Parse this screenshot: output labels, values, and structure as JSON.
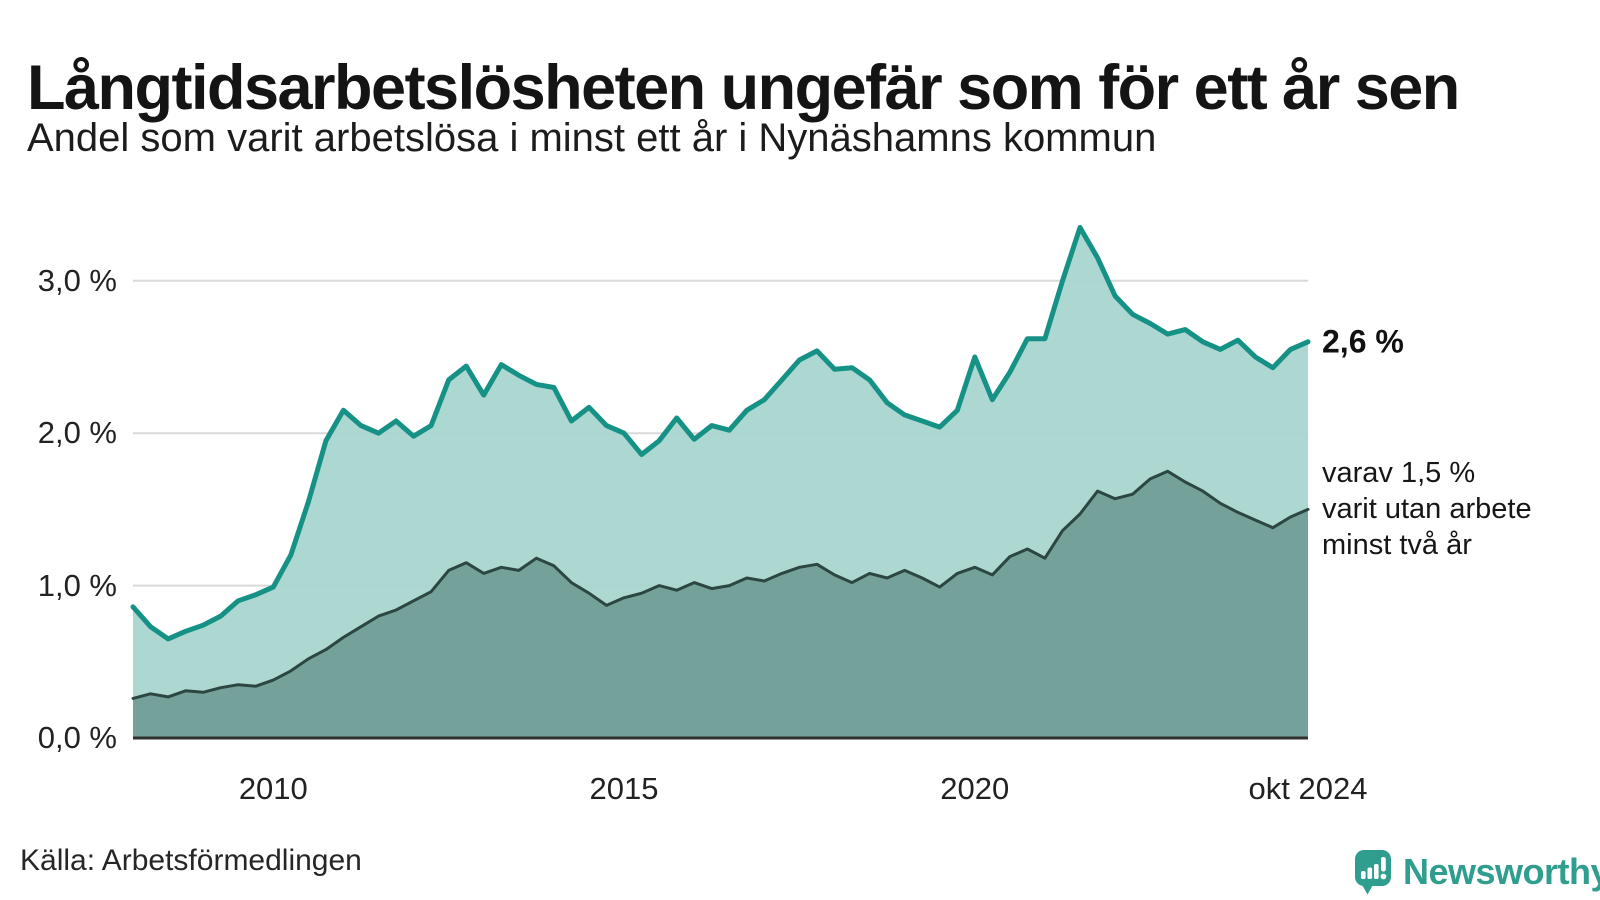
{
  "header": {
    "title": "Långtidsarbetslösheten ungefär som för ett år sen",
    "subtitle": "Andel som varit arbetslösa i minst ett år i Nynäshamns kommun"
  },
  "chart": {
    "y_ticks": [
      {
        "label": "3,0 %",
        "value": 3.0
      },
      {
        "label": "2,0 %",
        "value": 2.0
      },
      {
        "label": "1,0 %",
        "value": 1.0
      },
      {
        "label": "0,0 %",
        "value": 0.0
      }
    ],
    "x_ticks": [
      {
        "label": "2010",
        "year": 2010
      },
      {
        "label": "2015",
        "year": 2015
      },
      {
        "label": "2020",
        "year": 2020
      },
      {
        "label": "okt 2024",
        "year": 2024.75
      }
    ],
    "annotations": {
      "latest_total": {
        "text": "2,6 %",
        "value": 2.6
      },
      "two_year": {
        "value": 1.5,
        "lines": [
          "varav 1,5 %",
          "varit utan arbete",
          "minst två år"
        ]
      }
    },
    "colors": {
      "grid": "#d9d9d9",
      "axis": "#303030",
      "logo": "#2f9e8e"
    }
  },
  "chart_data": {
    "type": "area",
    "title": "Långtidsarbetslösheten ungefär som för ett år sen",
    "subtitle": "Andel som varit arbetslösa i minst ett år i Nynäshamns kommun",
    "unit": "%",
    "x_start": 2008.0,
    "x_step_years": 0.25,
    "x_end_label": "okt 2024",
    "ylim": [
      0,
      3.5
    ],
    "yticks": [
      0,
      1,
      2,
      3
    ],
    "grid": true,
    "legend_position": "none",
    "x": [
      2008.0,
      2008.25,
      2008.5,
      2008.75,
      2009.0,
      2009.25,
      2009.5,
      2009.75,
      2010.0,
      2010.25,
      2010.5,
      2010.75,
      2011.0,
      2011.25,
      2011.5,
      2011.75,
      2012.0,
      2012.25,
      2012.5,
      2012.75,
      2013.0,
      2013.25,
      2013.5,
      2013.75,
      2014.0,
      2014.25,
      2014.5,
      2014.75,
      2015.0,
      2015.25,
      2015.5,
      2015.75,
      2016.0,
      2016.25,
      2016.5,
      2016.75,
      2017.0,
      2017.25,
      2017.5,
      2017.75,
      2018.0,
      2018.25,
      2018.5,
      2018.75,
      2019.0,
      2019.25,
      2019.5,
      2019.75,
      2020.0,
      2020.25,
      2020.5,
      2020.75,
      2021.0,
      2021.25,
      2021.5,
      2021.75,
      2022.0,
      2022.25,
      2022.5,
      2022.75,
      2023.0,
      2023.25,
      2023.5,
      2023.75,
      2024.0,
      2024.25,
      2024.5,
      2024.75
    ],
    "series": [
      {
        "name": "Arbetslösa minst ett år",
        "line_color": "#169186",
        "fill_color": "#a8d5ce",
        "latest_label": "2,6 %",
        "values": [
          0.86,
          0.73,
          0.65,
          0.7,
          0.74,
          0.8,
          0.9,
          0.94,
          0.99,
          1.2,
          1.55,
          1.95,
          2.15,
          2.05,
          2.0,
          2.08,
          1.98,
          2.05,
          2.35,
          2.44,
          2.25,
          2.45,
          2.38,
          2.32,
          2.3,
          2.08,
          2.17,
          2.05,
          2.0,
          1.86,
          1.95,
          2.1,
          1.96,
          2.05,
          2.02,
          2.15,
          2.22,
          2.35,
          2.48,
          2.54,
          2.42,
          2.43,
          2.35,
          2.2,
          2.12,
          2.08,
          2.04,
          2.15,
          2.5,
          2.22,
          2.4,
          2.62,
          2.62,
          3.0,
          3.35,
          3.15,
          2.9,
          2.78,
          2.72,
          2.65,
          2.68,
          2.6,
          2.55,
          2.61,
          2.5,
          2.43,
          2.55,
          2.6
        ]
      },
      {
        "name": "varav arbetslösa minst två år",
        "line_color": "#2c4742",
        "fill_color": "#719f99",
        "latest_label": "1,5 %",
        "values": [
          0.26,
          0.29,
          0.27,
          0.31,
          0.3,
          0.33,
          0.35,
          0.34,
          0.38,
          0.44,
          0.52,
          0.58,
          0.66,
          0.73,
          0.8,
          0.84,
          0.9,
          0.96,
          1.1,
          1.15,
          1.08,
          1.12,
          1.1,
          1.18,
          1.13,
          1.02,
          0.95,
          0.87,
          0.92,
          0.95,
          1.0,
          0.97,
          1.02,
          0.98,
          1.0,
          1.05,
          1.03,
          1.08,
          1.12,
          1.14,
          1.07,
          1.02,
          1.08,
          1.05,
          1.1,
          1.05,
          0.99,
          1.08,
          1.12,
          1.07,
          1.19,
          1.24,
          1.18,
          1.36,
          1.47,
          1.62,
          1.57,
          1.6,
          1.7,
          1.75,
          1.68,
          1.62,
          1.54,
          1.48,
          1.43,
          1.38,
          1.45,
          1.5
        ]
      }
    ]
  },
  "footer": {
    "source": "Källa: Arbetsförmedlingen",
    "logo_text": "Newsworthy"
  }
}
